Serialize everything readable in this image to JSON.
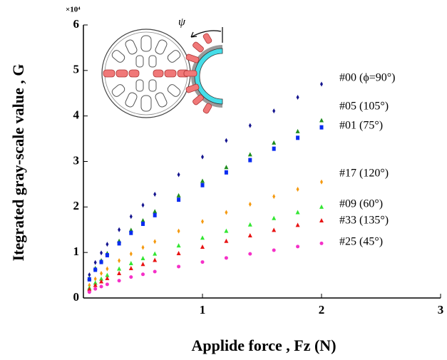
{
  "chart_data": {
    "type": "scatter",
    "x_label": "Applide force , Fz   (N)",
    "y_label": "Itegrated gray-scale value ,  G",
    "y_multiplier": "×10⁴",
    "annotations": [
      "ψ"
    ],
    "xlim": [
      0,
      3
    ],
    "xticks": [
      1,
      2,
      3
    ],
    "ylim": [
      0,
      6
    ],
    "yticks": [
      0,
      1,
      2,
      3,
      4,
      5,
      6
    ],
    "series": [
      {
        "name": "#00 (ϕ=90°)",
        "color": "#15158f",
        "marker": "diamond",
        "x": [
          0.05,
          0.1,
          0.15,
          0.2,
          0.3,
          0.4,
          0.5,
          0.6,
          0.8,
          1.0,
          1.2,
          1.4,
          1.6,
          1.8,
          2.0
        ],
        "values": [
          0.51,
          0.78,
          0.99,
          1.18,
          1.5,
          1.79,
          2.04,
          2.28,
          2.71,
          3.1,
          3.46,
          3.79,
          4.11,
          4.41,
          4.7
        ]
      },
      {
        "name": "#05 (105°)",
        "color": "#1e8c1e",
        "marker": "triangle",
        "x": [
          0.05,
          0.1,
          0.15,
          0.2,
          0.3,
          0.4,
          0.5,
          0.6,
          0.8,
          1.0,
          1.2,
          1.4,
          1.6,
          1.8,
          2.0
        ],
        "values": [
          0.43,
          0.65,
          0.82,
          0.98,
          1.25,
          1.49,
          1.7,
          1.9,
          2.25,
          2.57,
          2.87,
          3.15,
          3.41,
          3.66,
          3.9
        ]
      },
      {
        "name": "#01 (75°)",
        "color": "#0a2cf0",
        "marker": "square",
        "x": [
          0.05,
          0.1,
          0.15,
          0.2,
          0.3,
          0.4,
          0.5,
          0.6,
          0.8,
          1.0,
          1.2,
          1.4,
          1.6,
          1.8,
          2.0
        ],
        "values": [
          0.41,
          0.62,
          0.79,
          0.94,
          1.2,
          1.43,
          1.63,
          1.82,
          2.16,
          2.48,
          2.76,
          3.03,
          3.28,
          3.52,
          3.75
        ]
      },
      {
        "name": "#17 (120°)",
        "color": "#f59a10",
        "marker": "diamond",
        "x": [
          0.05,
          0.1,
          0.15,
          0.2,
          0.3,
          0.4,
          0.5,
          0.6,
          0.8,
          1.0,
          1.2,
          1.4,
          1.6,
          1.8,
          2.0
        ],
        "values": [
          0.28,
          0.42,
          0.54,
          0.64,
          0.82,
          0.97,
          1.11,
          1.24,
          1.47,
          1.68,
          1.88,
          2.06,
          2.23,
          2.39,
          2.55
        ]
      },
      {
        "name": "#09 (60°)",
        "color": "#33e633",
        "marker": "triangle",
        "x": [
          0.05,
          0.1,
          0.15,
          0.2,
          0.3,
          0.4,
          0.5,
          0.6,
          0.8,
          1.0,
          1.2,
          1.4,
          1.6,
          1.8,
          2.0
        ],
        "values": [
          0.22,
          0.33,
          0.42,
          0.5,
          0.64,
          0.76,
          0.87,
          0.97,
          1.15,
          1.32,
          1.47,
          1.61,
          1.75,
          1.88,
          2.0
        ]
      },
      {
        "name": "#33 (135°)",
        "color": "#e81414",
        "marker": "triangle",
        "x": [
          0.05,
          0.1,
          0.15,
          0.2,
          0.3,
          0.4,
          0.5,
          0.6,
          0.8,
          1.0,
          1.2,
          1.4,
          1.6,
          1.8,
          2.0
        ],
        "values": [
          0.19,
          0.28,
          0.36,
          0.43,
          0.54,
          0.65,
          0.74,
          0.83,
          0.98,
          1.12,
          1.25,
          1.37,
          1.49,
          1.6,
          1.7
        ]
      },
      {
        "name": "#25 (45°)",
        "color": "#f530c8",
        "marker": "circle",
        "x": [
          0.05,
          0.1,
          0.15,
          0.2,
          0.3,
          0.4,
          0.5,
          0.6,
          0.8,
          1.0,
          1.2,
          1.4,
          1.6,
          1.8,
          2.0
        ],
        "values": [
          0.13,
          0.2,
          0.25,
          0.3,
          0.38,
          0.46,
          0.52,
          0.58,
          0.69,
          0.79,
          0.88,
          0.97,
          1.05,
          1.13,
          1.2
        ]
      }
    ]
  }
}
